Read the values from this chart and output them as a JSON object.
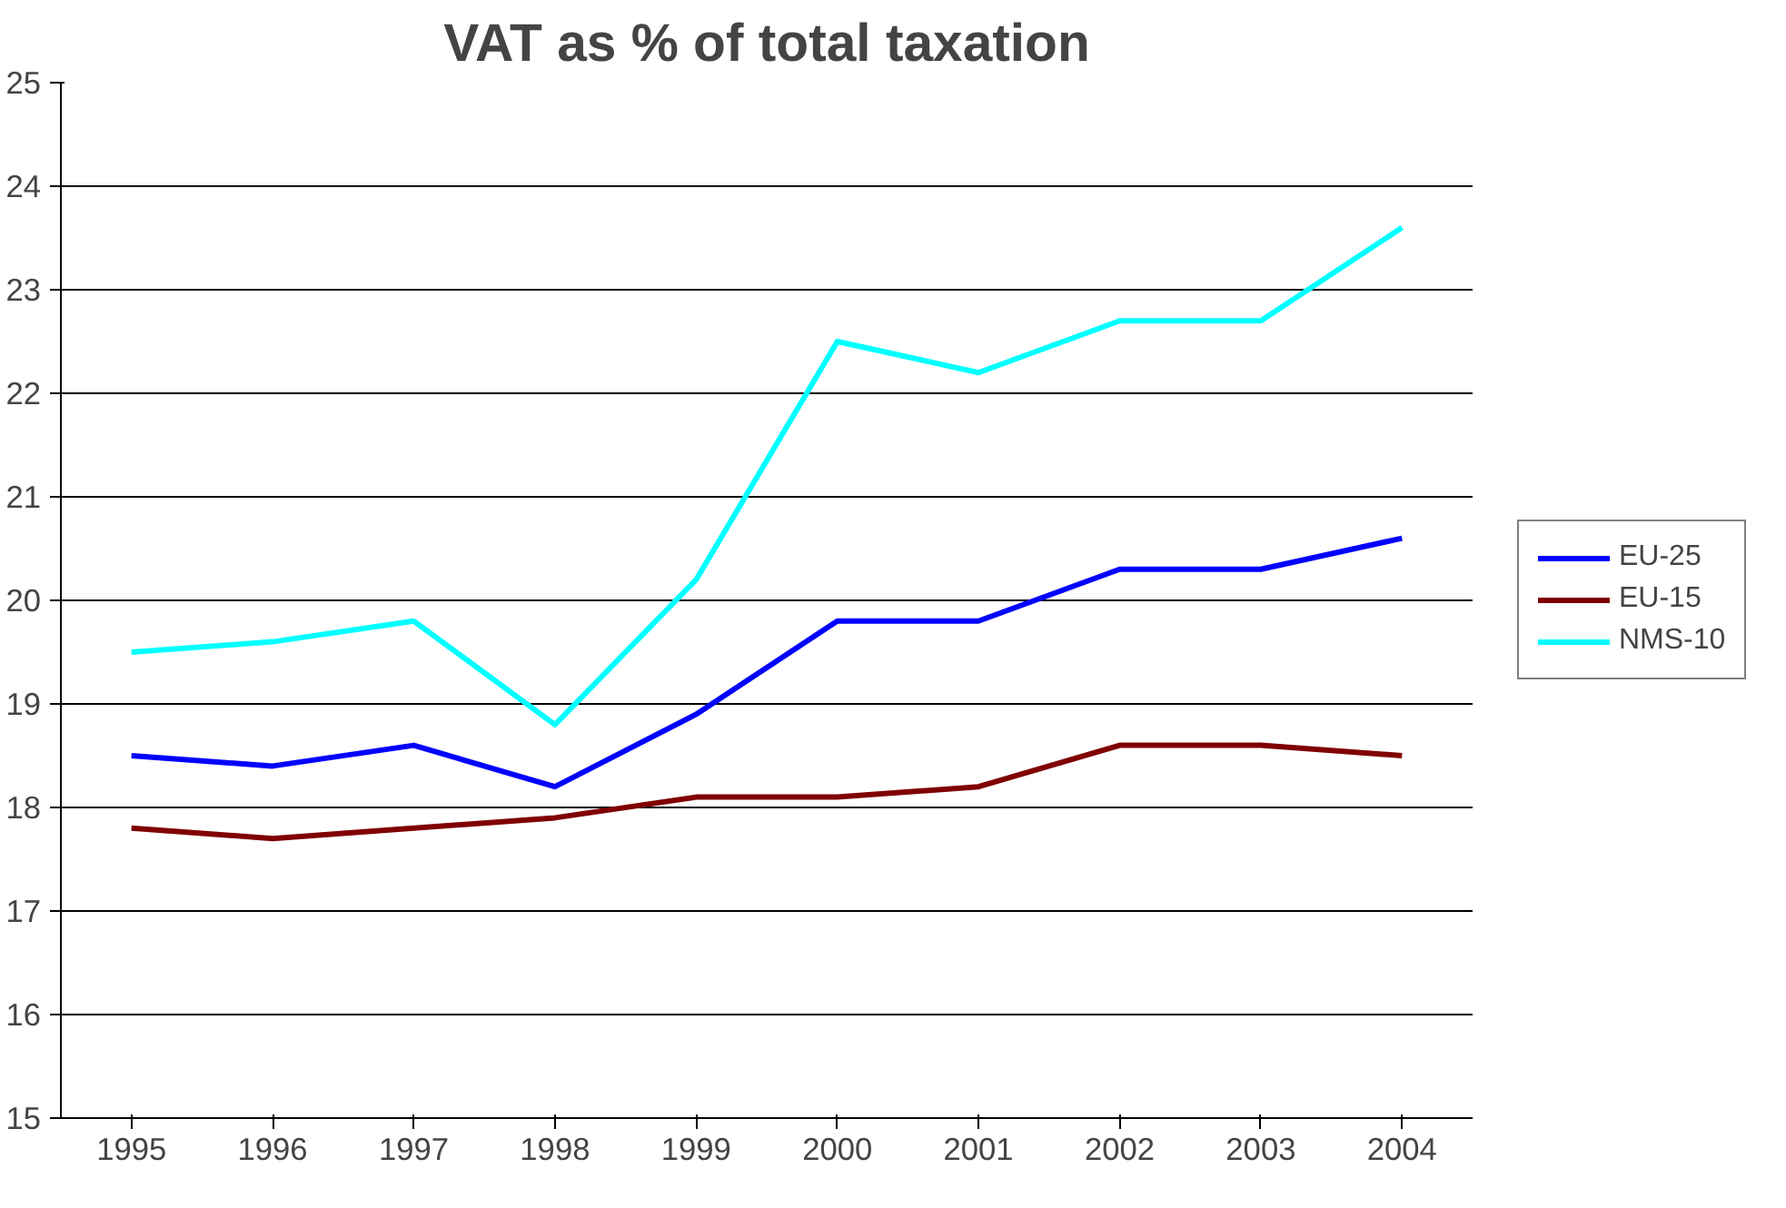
{
  "chart_data": {
    "type": "line",
    "title": "VAT as % of total taxation",
    "categories": [
      "1995",
      "1996",
      "1997",
      "1998",
      "1999",
      "2000",
      "2001",
      "2002",
      "2003",
      "2004"
    ],
    "series": [
      {
        "name": "EU-25",
        "color": "#0000ff",
        "values": [
          18.5,
          18.4,
          18.6,
          18.2,
          18.9,
          19.8,
          19.8,
          20.3,
          20.3,
          20.6
        ]
      },
      {
        "name": "EU-15",
        "color": "#800000",
        "values": [
          17.8,
          17.7,
          17.8,
          17.9,
          18.1,
          18.1,
          18.2,
          18.6,
          18.6,
          18.5
        ]
      },
      {
        "name": "NMS-10",
        "color": "#00ffff",
        "values": [
          19.5,
          19.6,
          19.8,
          18.8,
          20.2,
          22.5,
          22.2,
          22.7,
          22.7,
          23.6
        ]
      }
    ],
    "ylim": [
      15,
      25
    ],
    "yticks": [
      15,
      16,
      17,
      18,
      19,
      20,
      21,
      22,
      23,
      24,
      25
    ],
    "grid": "y",
    "legend": "right",
    "marker": "none",
    "line_style": "solid"
  }
}
